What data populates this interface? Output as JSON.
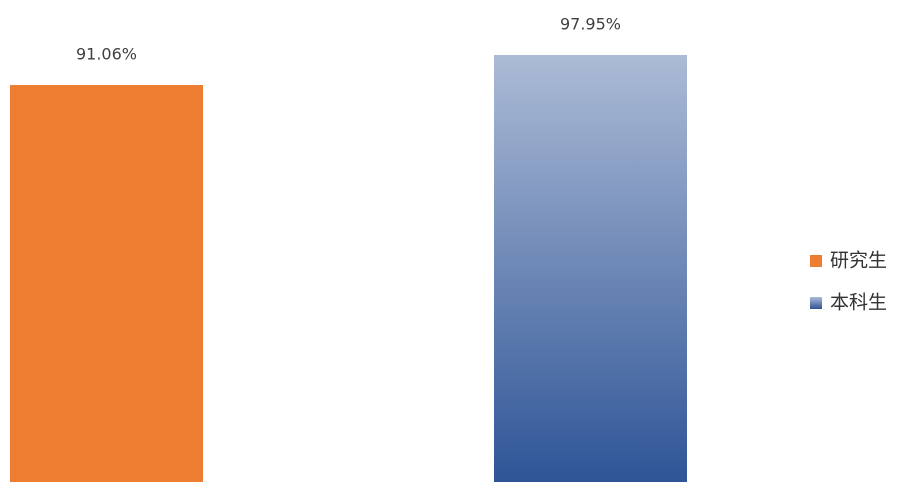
{
  "chart_data": {
    "type": "bar",
    "series": [
      {
        "name": "研究生",
        "color": "#ed7d31",
        "values": [
          91.06
        ],
        "value_labels": [
          "91.06%"
        ]
      },
      {
        "name": "本科生",
        "color": "#2f5597",
        "gradient": true,
        "values": [
          97.95
        ],
        "value_labels": [
          "97.95%"
        ]
      }
    ],
    "legend": "right"
  }
}
